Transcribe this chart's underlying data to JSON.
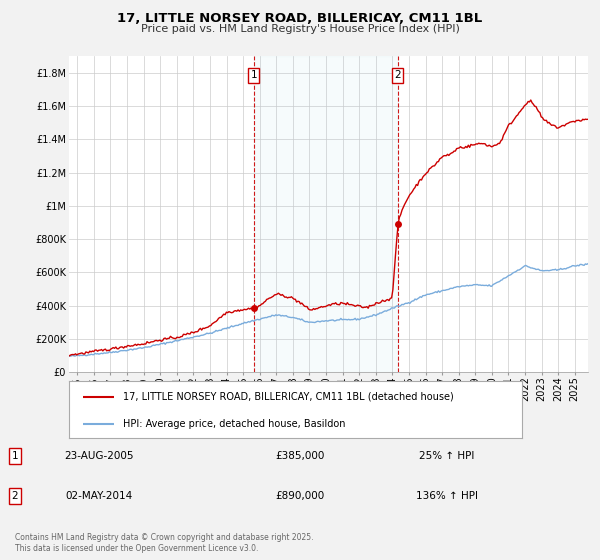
{
  "title": "17, LITTLE NORSEY ROAD, BILLERICAY, CM11 1BL",
  "subtitle": "Price paid vs. HM Land Registry's House Price Index (HPI)",
  "background_color": "#f2f2f2",
  "plot_background_color": "#ffffff",
  "grid_color": "#cccccc",
  "hpi_line_color": "#7aacdc",
  "price_line_color": "#cc0000",
  "marker_color": "#cc0000",
  "sale1_year": 2005.646,
  "sale1_price": 385000,
  "sale2_year": 2014.335,
  "sale2_price": 890000,
  "ylim_max": 1900000,
  "ylim_min": 0,
  "xlim_min": 1994.5,
  "xlim_max": 2025.8,
  "legend_label_price": "17, LITTLE NORSEY ROAD, BILLERICAY, CM11 1BL (detached house)",
  "legend_label_hpi": "HPI: Average price, detached house, Basildon",
  "annotation1_label": "1",
  "annotation1_date": "23-AUG-2005",
  "annotation1_price": "£385,000",
  "annotation1_hpi": "25% ↑ HPI",
  "annotation2_label": "2",
  "annotation2_date": "02-MAY-2014",
  "annotation2_price": "£890,000",
  "annotation2_hpi": "136% ↑ HPI",
  "footnote": "Contains HM Land Registry data © Crown copyright and database right 2025.\nThis data is licensed under the Open Government Licence v3.0.",
  "yticks": [
    0,
    200000,
    400000,
    600000,
    800000,
    1000000,
    1200000,
    1400000,
    1600000,
    1800000
  ],
  "ytick_labels": [
    "£0",
    "£200K",
    "£400K",
    "£600K",
    "£800K",
    "£1M",
    "£1.2M",
    "£1.4M",
    "£1.6M",
    "£1.8M"
  ],
  "xticks": [
    1995,
    1996,
    1997,
    1998,
    1999,
    2000,
    2001,
    2002,
    2003,
    2004,
    2005,
    2006,
    2007,
    2008,
    2009,
    2010,
    2011,
    2012,
    2013,
    2014,
    2015,
    2016,
    2017,
    2018,
    2019,
    2020,
    2021,
    2022,
    2023,
    2024,
    2025
  ]
}
